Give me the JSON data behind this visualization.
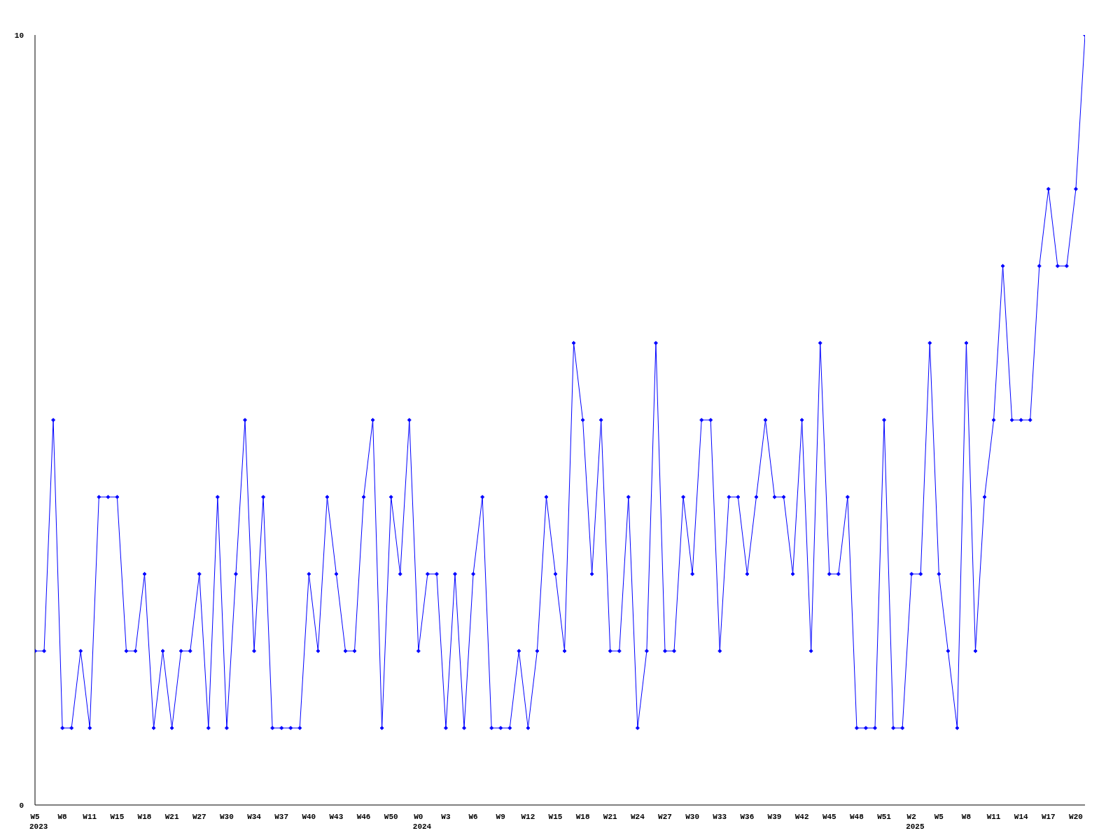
{
  "chart_data": {
    "type": "line",
    "categories": [
      "W5\n2023",
      null,
      null,
      "W8",
      null,
      null,
      "W11",
      null,
      null,
      "W15",
      null,
      null,
      "W18",
      null,
      null,
      "W21",
      null,
      null,
      "W27",
      null,
      null,
      "W30",
      null,
      null,
      "W34",
      null,
      null,
      "W37",
      null,
      null,
      "W40",
      null,
      null,
      "W43",
      null,
      null,
      "W46",
      null,
      null,
      "W50",
      null,
      null,
      "W0\n2024",
      null,
      null,
      "W3",
      null,
      null,
      "W6",
      null,
      null,
      "W9",
      null,
      null,
      "W12",
      null,
      null,
      "W15",
      null,
      null,
      "W18",
      null,
      null,
      "W21",
      null,
      null,
      "W24",
      null,
      null,
      "W27",
      null,
      null,
      "W30",
      null,
      null,
      "W33",
      null,
      null,
      "W36",
      null,
      null,
      "W39",
      null,
      null,
      "W42",
      null,
      null,
      "W45",
      null,
      null,
      "W48",
      null,
      null,
      "W51",
      null,
      null,
      "W2\n2025",
      null,
      null,
      "W5",
      null,
      null,
      "W8",
      null,
      null,
      "W11",
      null,
      null,
      "W14",
      null,
      null,
      "W17",
      null,
      null,
      "W20",
      null
    ],
    "series": [
      {
        "color": "#0000ff",
        "values": [
          2,
          2,
          5,
          1,
          1,
          2,
          1,
          4,
          4,
          4,
          2,
          2,
          3,
          1,
          2,
          1,
          2,
          2,
          3,
          1,
          4,
          1,
          3,
          5,
          2,
          4,
          1,
          1,
          1,
          1,
          3,
          2,
          4,
          3,
          2,
          2,
          4,
          5,
          1,
          4,
          3,
          5,
          2,
          3,
          3,
          1,
          3,
          1,
          3,
          4,
          1,
          1,
          1,
          2,
          1,
          2,
          4,
          3,
          2,
          6,
          5,
          3,
          5,
          2,
          2,
          4,
          1,
          2,
          6,
          2,
          2,
          4,
          3,
          5,
          5,
          2,
          4,
          4,
          3,
          4,
          5,
          4,
          4,
          3,
          5,
          2,
          6,
          3,
          3,
          4,
          1,
          1,
          1,
          5,
          1,
          1,
          3,
          3,
          6,
          3,
          2,
          1,
          6,
          2,
          4,
          5,
          7,
          5,
          5,
          5,
          7,
          8,
          7,
          7,
          8,
          10
        ]
      }
    ],
    "ylim": [
      0,
      10
    ],
    "yticks": [
      0,
      10
    ],
    "grid": false,
    "legend": false,
    "marker": "diamond",
    "line_style": "solid"
  }
}
